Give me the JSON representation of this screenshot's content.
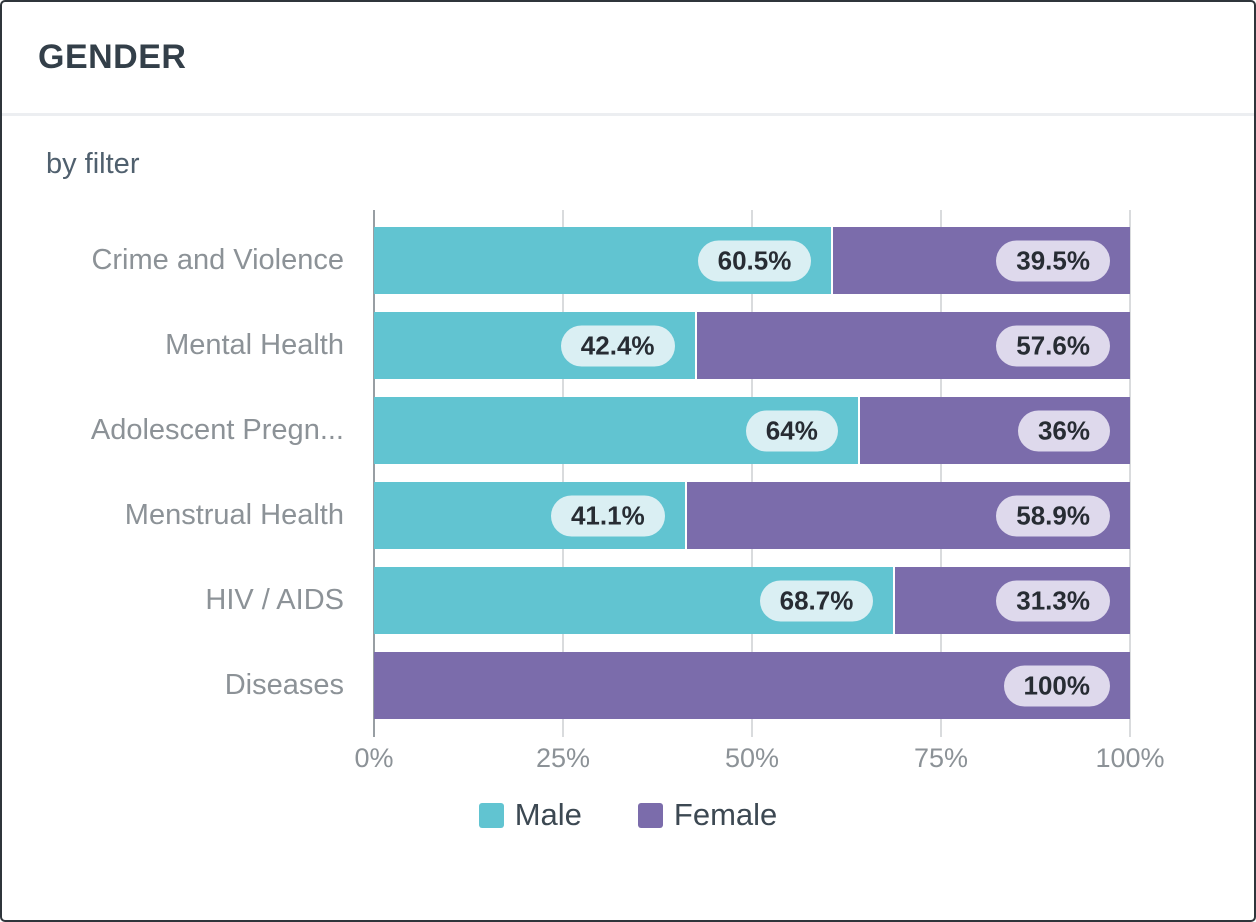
{
  "header": {
    "title": "GENDER"
  },
  "subtitle": "by filter",
  "colors": {
    "male": "#61c4d1",
    "female": "#7b6cab",
    "male_pill_bg": "#daeff3",
    "female_pill_bg": "#ded9ec",
    "pill_text": "#272c33",
    "axis_line": "#989ea3",
    "gridline": "#d9dbdd",
    "category_text": "#8c9297",
    "legend_text": "#3c4852"
  },
  "chart_data": {
    "type": "bar",
    "orientation": "horizontal",
    "stacked": true,
    "unit": "%",
    "title": "GENDER",
    "subtitle": "by filter",
    "categories": [
      "Crime and Violence",
      "Mental Health",
      "Adolescent Pregn...",
      "Menstrual Health",
      "HIV / AIDS",
      "Diseases"
    ],
    "series": [
      {
        "name": "Male",
        "color": "#61c4d1",
        "values": [
          60.5,
          42.4,
          64,
          41.1,
          68.7,
          0
        ],
        "labels": [
          "60.5%",
          "42.4%",
          "64%",
          "41.1%",
          "68.7%",
          ""
        ]
      },
      {
        "name": "Female",
        "color": "#7b6cab",
        "values": [
          39.5,
          57.6,
          36,
          58.9,
          31.3,
          100
        ],
        "labels": [
          "39.5%",
          "57.6%",
          "36%",
          "58.9%",
          "31.3%",
          "100%"
        ]
      }
    ],
    "xlim": [
      0,
      100
    ],
    "x_ticks": [
      0,
      25,
      50,
      75,
      100
    ],
    "x_tick_labels": [
      "0%",
      "25%",
      "50%",
      "75%",
      "100%"
    ],
    "grid": true,
    "legend_position": "bottom",
    "legend": [
      "Male",
      "Female"
    ]
  }
}
